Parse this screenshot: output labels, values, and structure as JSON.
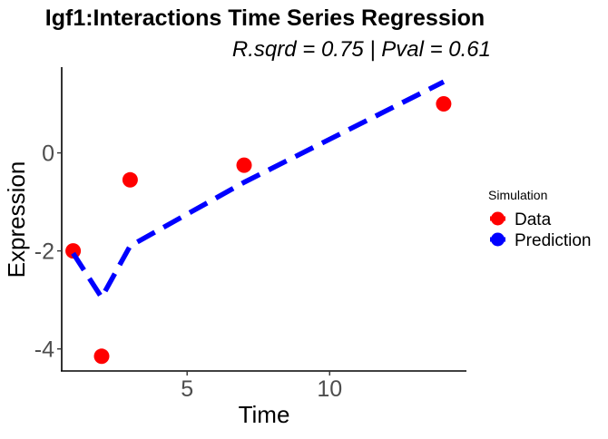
{
  "chart_data": {
    "type": "scatter",
    "title": "Igf1:Interactions Time Series Regression",
    "subtitle": "R.sqrd = 0.75 | Pval = 0.61",
    "xlabel": "Time",
    "ylabel": "Expression",
    "xlim": [
      0.6,
      14.8
    ],
    "ylim": [
      -4.45,
      1.75
    ],
    "x_ticks": [
      5,
      10
    ],
    "y_ticks": [
      -4,
      -2,
      0
    ],
    "grid": false,
    "legend": {
      "title": "Simulation",
      "placement": "right",
      "entries": [
        "Data",
        "Prediction"
      ]
    },
    "series": [
      {
        "name": "Data",
        "kind": "points",
        "color": "#ff0000",
        "x": [
          1,
          2,
          3,
          7,
          14
        ],
        "y": [
          -2.0,
          -4.15,
          -0.55,
          -0.25,
          1.0
        ]
      },
      {
        "name": "Prediction",
        "kind": "dashed-line",
        "color": "#0000ff",
        "x": [
          1,
          2,
          3,
          7,
          14
        ],
        "y": [
          -2.05,
          -2.95,
          -1.9,
          -0.6,
          1.45
        ]
      }
    ]
  }
}
